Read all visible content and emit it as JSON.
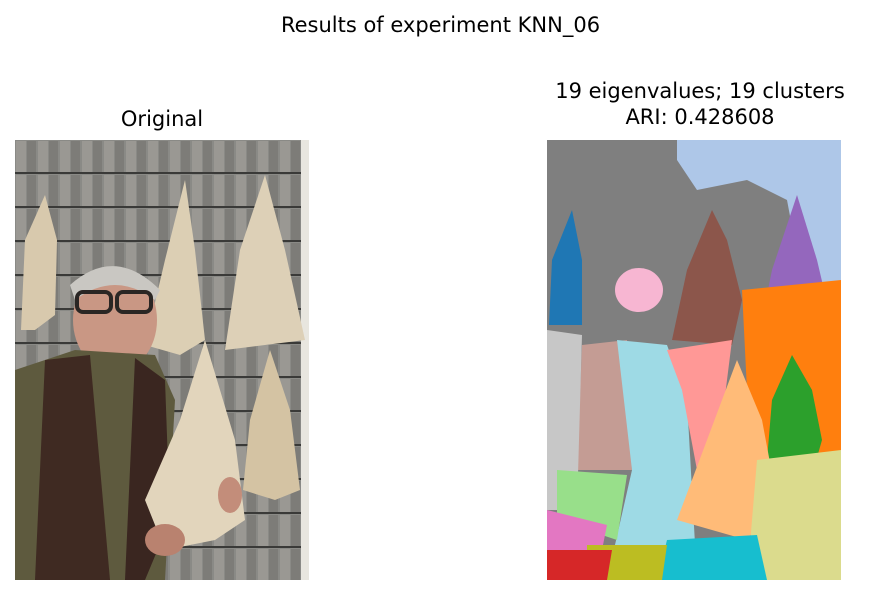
{
  "figure": {
    "suptitle": "Results of experiment KNN_06"
  },
  "left_panel": {
    "title": "Original",
    "image": "photo of an elderly man with glasses holding dried fish in front of a shingled wall"
  },
  "right_panel": {
    "title_line1": "19 eigenvalues; 19 clusters",
    "title_line2": "ARI: 0.428608",
    "image": "segmentation map colored by cluster"
  },
  "chart_data": [
    {
      "type": "image",
      "title": "Original"
    },
    {
      "type": "image",
      "title": "19 eigenvalues; 19 clusters\nARI: 0.428608",
      "eigenvalues": 19,
      "clusters": 19,
      "ari": 0.428608,
      "palette": [
        "#7f7f7f",
        "#aec7e8",
        "#1f77b4",
        "#8c564b",
        "#9467bd",
        "#ff7f0e",
        "#f7b6d2",
        "#c49c94",
        "#9edae5",
        "#ff9896",
        "#ffbb78",
        "#2ca02c",
        "#c7c7c7",
        "#98df8a",
        "#dbdb8d",
        "#e377c2",
        "#17becf",
        "#bcbd22",
        "#d62728"
      ]
    }
  ]
}
